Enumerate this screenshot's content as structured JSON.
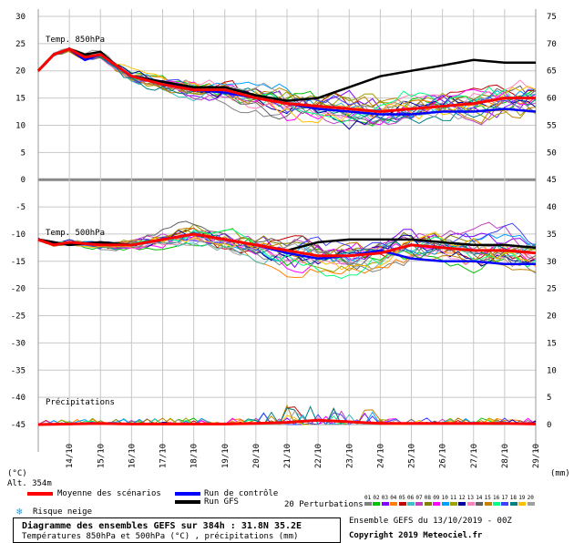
{
  "chart_data": {
    "type": "line",
    "title": "Diagramme des ensembles GEFS sur 384h : 31.8N 35.2E",
    "subtitle": "Températures 850hPa et 500hPa (°C) , précipitations (mm)",
    "panels": {
      "t850": {
        "label": "Temp. 850hPa"
      },
      "t500": {
        "label": "Temp. 500hPa"
      },
      "precip": {
        "label": "Précipitations"
      }
    },
    "left_axis": {
      "unit": "(°C)",
      "ticks": [
        30,
        25,
        20,
        15,
        10,
        5,
        0,
        -5,
        -10,
        -15,
        -20,
        -25,
        -30,
        -35,
        -40,
        -45
      ],
      "range": [
        -45,
        30
      ]
    },
    "right_axis": {
      "unit": "(mm)",
      "ticks": [
        75,
        70,
        65,
        60,
        55,
        50,
        45,
        40,
        35,
        30,
        25,
        20,
        15,
        10,
        5,
        0
      ]
    },
    "x_ticks": [
      "14/10",
      "15/10",
      "16/10",
      "17/10",
      "18/10",
      "19/10",
      "20/10",
      "21/10",
      "22/10",
      "23/10",
      "24/10",
      "25/10",
      "26/10",
      "27/10",
      "28/10",
      "29/10"
    ],
    "x_range_days": [
      0,
      16
    ],
    "altitude": "Alt. 354m",
    "mean_850": [
      [
        0,
        20
      ],
      [
        0.5,
        23
      ],
      [
        1,
        24
      ],
      [
        1.5,
        22.5
      ],
      [
        2,
        23
      ],
      [
        2.5,
        21
      ],
      [
        3,
        19
      ],
      [
        4,
        17.5
      ],
      [
        5,
        16.5
      ],
      [
        6,
        16.5
      ],
      [
        7,
        15
      ],
      [
        8,
        14
      ],
      [
        9,
        13.5
      ],
      [
        10,
        13
      ],
      [
        11,
        12.5
      ],
      [
        12,
        13
      ],
      [
        13,
        13.5
      ],
      [
        14,
        14
      ],
      [
        15,
        15
      ],
      [
        16,
        15
      ]
    ],
    "gfs_850": [
      [
        0,
        20
      ],
      [
        0.5,
        23
      ],
      [
        1,
        24
      ],
      [
        1.5,
        23
      ],
      [
        2,
        23.5
      ],
      [
        2.5,
        21
      ],
      [
        3,
        19
      ],
      [
        4,
        18
      ],
      [
        5,
        17
      ],
      [
        6,
        17
      ],
      [
        7,
        15.5
      ],
      [
        8,
        14.5
      ],
      [
        9,
        15
      ],
      [
        9.5,
        16
      ],
      [
        10,
        17
      ],
      [
        11,
        19
      ],
      [
        12,
        20
      ],
      [
        13,
        21
      ],
      [
        14,
        22
      ],
      [
        15,
        21.5
      ],
      [
        16,
        21.5
      ]
    ],
    "control_850": [
      [
        0,
        20
      ],
      [
        0.5,
        23
      ],
      [
        1,
        24
      ],
      [
        1.5,
        22
      ],
      [
        2,
        23
      ],
      [
        2.5,
        21
      ],
      [
        3,
        19
      ],
      [
        4,
        18
      ],
      [
        5,
        16.5
      ],
      [
        6,
        16
      ],
      [
        7,
        15
      ],
      [
        8,
        14
      ],
      [
        9,
        13
      ],
      [
        10,
        12.5
      ],
      [
        11,
        12
      ],
      [
        12,
        12
      ],
      [
        13,
        12.5
      ],
      [
        14,
        12.5
      ],
      [
        15,
        13
      ],
      [
        16,
        12.5
      ]
    ],
    "mean_500": [
      [
        0,
        -11
      ],
      [
        0.5,
        -12
      ],
      [
        1,
        -11.5
      ],
      [
        2,
        -12
      ],
      [
        3,
        -12
      ],
      [
        4,
        -11
      ],
      [
        5,
        -10
      ],
      [
        6,
        -11
      ],
      [
        7,
        -12
      ],
      [
        8,
        -13
      ],
      [
        9,
        -14
      ],
      [
        10,
        -14
      ],
      [
        11,
        -13.5
      ],
      [
        12,
        -12
      ],
      [
        13,
        -12.5
      ],
      [
        14,
        -13
      ],
      [
        15,
        -13
      ],
      [
        16,
        -13.5
      ]
    ],
    "gfs_500": [
      [
        0,
        -11
      ],
      [
        1,
        -12
      ],
      [
        2,
        -11.5
      ],
      [
        3,
        -12
      ],
      [
        4,
        -11
      ],
      [
        5,
        -10
      ],
      [
        6,
        -11
      ],
      [
        7,
        -12
      ],
      [
        8,
        -13
      ],
      [
        9,
        -11.5
      ],
      [
        10,
        -11
      ],
      [
        11,
        -11
      ],
      [
        12,
        -11
      ],
      [
        13,
        -11.5
      ],
      [
        14,
        -12
      ],
      [
        15,
        -12
      ],
      [
        16,
        -12.5
      ]
    ],
    "control_500": [
      [
        0,
        -11
      ],
      [
        1,
        -12
      ],
      [
        2,
        -11.5
      ],
      [
        3,
        -12
      ],
      [
        4,
        -11
      ],
      [
        5,
        -10
      ],
      [
        6,
        -11
      ],
      [
        7,
        -12
      ],
      [
        8,
        -13.5
      ],
      [
        9,
        -14.5
      ],
      [
        10,
        -14
      ],
      [
        11,
        -13
      ],
      [
        12,
        -14.5
      ],
      [
        13,
        -15
      ],
      [
        14,
        -15
      ],
      [
        15,
        -15.5
      ],
      [
        16,
        -15.5
      ]
    ],
    "mean_precip": [
      [
        0,
        0
      ],
      [
        1,
        0.1
      ],
      [
        2,
        0.2
      ],
      [
        3,
        0.1
      ],
      [
        4,
        0.1
      ],
      [
        5,
        0.1
      ],
      [
        6,
        0.1
      ],
      [
        7,
        0.2
      ],
      [
        8,
        0.4
      ],
      [
        9,
        0.8
      ],
      [
        10,
        0.5
      ],
      [
        11,
        0.2
      ],
      [
        12,
        0.2
      ],
      [
        13,
        0.2
      ],
      [
        14,
        0.2
      ],
      [
        15,
        0.2
      ],
      [
        16,
        0.1
      ]
    ],
    "grid": true
  },
  "legend": {
    "mean": {
      "label": "Moyenne des scénarios",
      "color": "#ff0000"
    },
    "control": {
      "label": "Run de contrôle",
      "color": "#0000ff"
    },
    "gfs": {
      "label": "Run GFS",
      "color": "#000000"
    },
    "perturbations": {
      "label": "20 Perturbations",
      "codes": [
        "01",
        "02",
        "03",
        "04",
        "05",
        "06",
        "07",
        "08",
        "09",
        "10",
        "11",
        "12",
        "13",
        "14",
        "15",
        "16",
        "17",
        "18",
        "19",
        "20"
      ],
      "colors": [
        "#808080",
        "#00c000",
        "#8000ff",
        "#ff8000",
        "#c00000",
        "#40c0c0",
        "#c040c0",
        "#808000",
        "#ff00ff",
        "#00a0ff",
        "#a0a000",
        "#0000a0",
        "#ff80c0",
        "#606060",
        "#c08000",
        "#00ff80",
        "#4040ff",
        "#008080",
        "#ffc000",
        "#a0a0a0"
      ]
    },
    "snow": {
      "label": "Risque neige",
      "color": "#00aaff"
    }
  },
  "footer": {
    "title": "Diagramme des ensembles GEFS sur 384h : 31.8N 35.2E",
    "subtitle": "Températures 850hPa et 500hPa (°C) , précipitations (mm)",
    "run": "Ensemble GEFS du 13/10/2019 - 00Z",
    "copyright": "Copyright 2019 Meteociel.fr"
  }
}
